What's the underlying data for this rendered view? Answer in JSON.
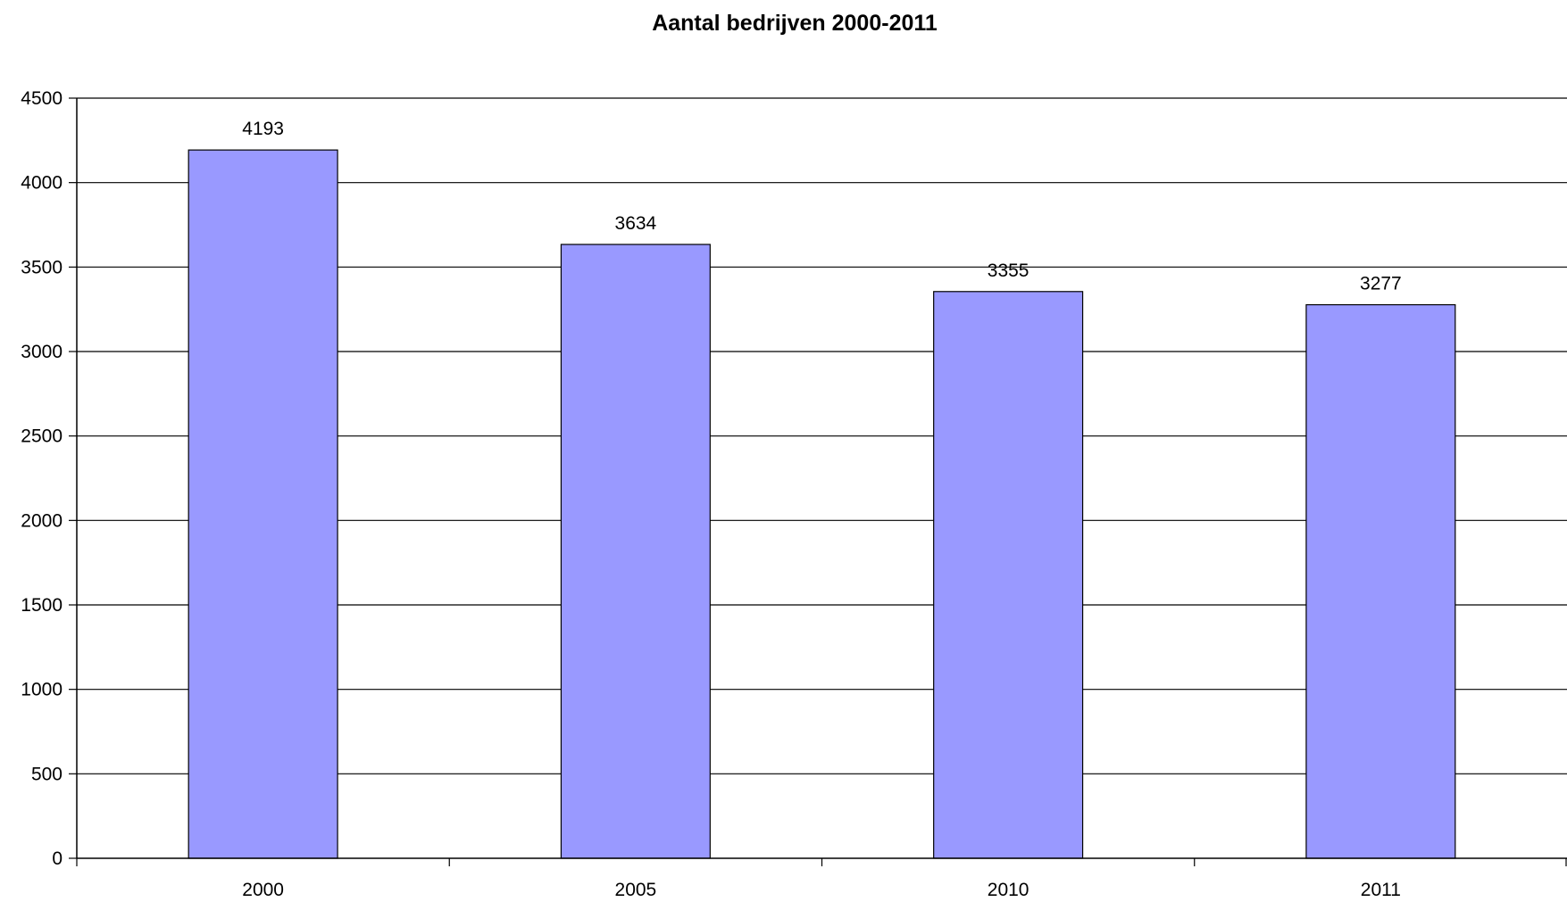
{
  "chart_data": {
    "type": "bar",
    "title": "Aantal bedrijven 2000-2011",
    "xlabel": "",
    "ylabel": "",
    "categories": [
      "2000",
      "2005",
      "2010",
      "2011"
    ],
    "values": [
      4193,
      3634,
      3355,
      3277
    ],
    "data_labels": [
      "4193",
      "3634",
      "3355",
      "3277"
    ],
    "ylim": [
      0,
      4500
    ],
    "y_ticks": [
      0,
      500,
      1000,
      1500,
      2000,
      2500,
      3000,
      3500,
      4000,
      4500
    ],
    "y_tick_labels": [
      "0",
      "500",
      "1000",
      "1500",
      "2000",
      "2500",
      "3000",
      "3500",
      "4000",
      "4500"
    ],
    "grid": true,
    "legend": "none",
    "colors": {
      "bar_fill": "#9999ff",
      "bar_stroke": "#000000",
      "grid": "#000000",
      "axis": "#000000",
      "background": "#ffffff"
    }
  }
}
